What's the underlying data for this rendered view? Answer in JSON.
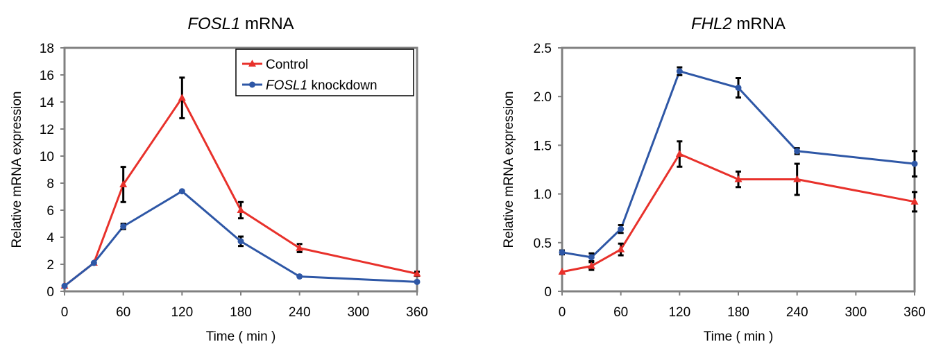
{
  "chart_data": [
    {
      "type": "line",
      "title": {
        "gene": "FOSL1",
        "suffix": " mRNA"
      },
      "xlabel": "Time ( min )",
      "ylabel": "Relative mRNA expression",
      "xlim": [
        0,
        360
      ],
      "ylim": [
        0,
        18
      ],
      "xticks": [
        "0",
        "60",
        "120",
        "180",
        "240",
        "300",
        "360"
      ],
      "yticks": [
        "0",
        "2",
        "4",
        "6",
        "8",
        "10",
        "12",
        "14",
        "16",
        "18"
      ],
      "legend": {
        "position": "top-right"
      },
      "series": [
        {
          "name": "Control",
          "legend_name": {
            "gene": "",
            "text": "Control"
          },
          "color": "#e8312b",
          "marker": "triangle",
          "points": [
            {
              "x": 0,
              "y": 0.4,
              "err": 0.05
            },
            {
              "x": 30,
              "y": 2.1,
              "err": 0.05
            },
            {
              "x": 60,
              "y": 7.9,
              "err": 1.3
            },
            {
              "x": 120,
              "y": 14.3,
              "err": 1.5
            },
            {
              "x": 180,
              "y": 6.0,
              "err": 0.6
            },
            {
              "x": 240,
              "y": 3.2,
              "err": 0.3
            },
            {
              "x": 360,
              "y": 1.3,
              "err": 0.15
            }
          ]
        },
        {
          "name": "FOSL1 knockdown",
          "legend_name": {
            "gene": "FOSL1",
            "text": " knockdown"
          },
          "color": "#2e57a6",
          "marker": "circle",
          "points": [
            {
              "x": 0,
              "y": 0.4,
              "err": 0.05
            },
            {
              "x": 30,
              "y": 2.1,
              "err": 0.05
            },
            {
              "x": 60,
              "y": 4.8,
              "err": 0.2
            },
            {
              "x": 120,
              "y": 7.4,
              "err": 0.1
            },
            {
              "x": 180,
              "y": 3.7,
              "err": 0.35
            },
            {
              "x": 240,
              "y": 1.1,
              "err": 0.05
            },
            {
              "x": 360,
              "y": 0.7,
              "err": 0.05
            }
          ]
        }
      ]
    },
    {
      "type": "line",
      "title": {
        "gene": "FHL2",
        "suffix": " mRNA"
      },
      "xlabel": "Time ( min )",
      "ylabel": "Relative mRNA expression",
      "xlim": [
        0,
        360
      ],
      "ylim": [
        0,
        2.5
      ],
      "xticks": [
        "0",
        "60",
        "120",
        "180",
        "240",
        "300",
        "360"
      ],
      "yticks": [
        "0",
        "0.5",
        "1.0",
        "1.5",
        "2.0",
        "2.5"
      ],
      "series": [
        {
          "color": "#e8312b",
          "marker": "triangle",
          "points": [
            {
              "x": 0,
              "y": 0.2,
              "err": 0.01
            },
            {
              "x": 30,
              "y": 0.26,
              "err": 0.04
            },
            {
              "x": 60,
              "y": 0.43,
              "err": 0.06
            },
            {
              "x": 120,
              "y": 1.41,
              "err": 0.13
            },
            {
              "x": 180,
              "y": 1.15,
              "err": 0.08
            },
            {
              "x": 240,
              "y": 1.15,
              "err": 0.16
            },
            {
              "x": 360,
              "y": 0.92,
              "err": 0.1
            }
          ]
        },
        {
          "color": "#2e57a6",
          "marker": "circle",
          "points": [
            {
              "x": 0,
              "y": 0.4,
              "err": 0.02
            },
            {
              "x": 30,
              "y": 0.35,
              "err": 0.04
            },
            {
              "x": 60,
              "y": 0.64,
              "err": 0.04
            },
            {
              "x": 120,
              "y": 2.26,
              "err": 0.04
            },
            {
              "x": 180,
              "y": 2.09,
              "err": 0.1
            },
            {
              "x": 240,
              "y": 1.44,
              "err": 0.03
            },
            {
              "x": 360,
              "y": 1.31,
              "err": 0.13
            }
          ]
        }
      ]
    }
  ]
}
